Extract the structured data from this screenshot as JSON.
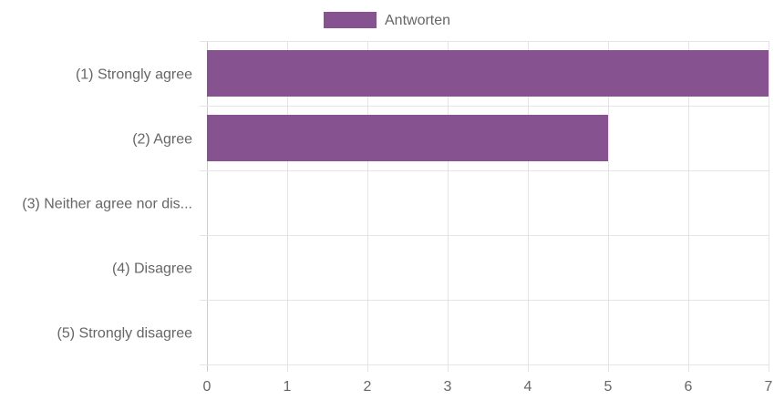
{
  "chart_data": {
    "type": "bar",
    "orientation": "horizontal",
    "categories": [
      "(1) Strongly agree",
      "(2) Agree",
      "(3) Neither agree nor dis...",
      "(4) Disagree",
      "(5) Strongly disagree"
    ],
    "series": [
      {
        "name": "Antworten",
        "values": [
          7,
          5,
          0,
          0,
          0
        ],
        "color": "#86528f"
      }
    ],
    "xlim": [
      0,
      7
    ],
    "x_ticks": [
      0,
      1,
      2,
      3,
      4,
      5,
      6,
      7
    ],
    "grid": true,
    "legend_position": "top-center",
    "colors": {
      "grid": "#e5e5e5",
      "axis": "#cccccc",
      "text": "#666666"
    }
  }
}
